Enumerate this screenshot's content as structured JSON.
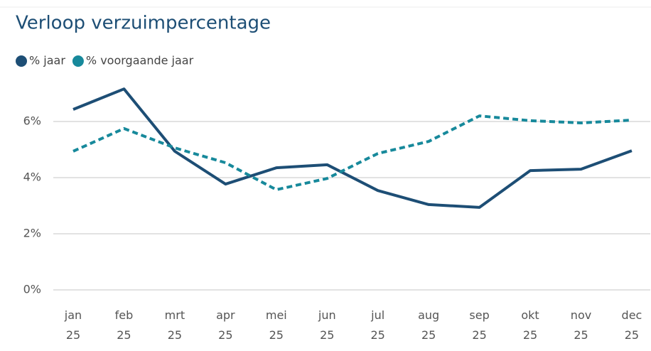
{
  "chart_data": {
    "type": "line",
    "title": "Verloop verzuimpercentage",
    "categories": [
      "jan 25",
      "feb 25",
      "mrt 25",
      "apr 25",
      "mei 25",
      "jun 25",
      "jul 25",
      "aug 25",
      "sep 25",
      "okt 25",
      "nov 25",
      "dec 25"
    ],
    "series": [
      {
        "name": "% jaar",
        "color": "#1d4e75",
        "values": [
          6.43,
          7.16,
          4.94,
          3.77,
          4.35,
          4.46,
          3.54,
          3.04,
          2.94,
          4.25,
          4.3,
          4.96
        ]
      },
      {
        "name": "% voorgaande jaar",
        "color": "#17899b",
        "dashed": true,
        "values": [
          4.94,
          5.75,
          5.06,
          4.53,
          3.57,
          3.97,
          4.86,
          5.29,
          6.2,
          6.03,
          5.95,
          6.05
        ]
      }
    ],
    "ylim": [
      0,
      8
    ],
    "yticks": [
      {
        "value": 0,
        "label": "0%"
      },
      {
        "value": 2,
        "label": "2%"
      },
      {
        "value": 4,
        "label": "4%"
      },
      {
        "value": 6,
        "label": "6%"
      }
    ],
    "grid": true,
    "legend": "top-left"
  }
}
